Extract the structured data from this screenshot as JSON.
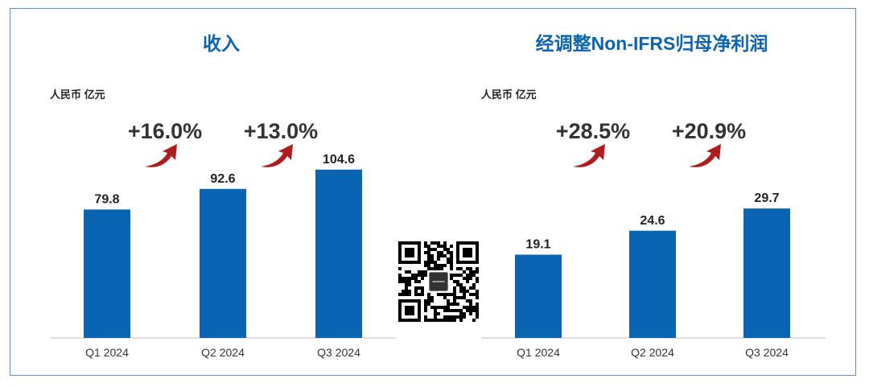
{
  "charts": [
    {
      "title": "收入",
      "unit": "人民币 亿元",
      "chart_data": {
        "type": "bar",
        "title": "收入",
        "ylabel": "人民币 亿元",
        "categories": [
          "Q1 2024",
          "Q2 2024",
          "Q3 2024"
        ],
        "values": [
          79.8,
          92.6,
          104.6
        ],
        "value_labels": [
          "79.8",
          "92.6",
          "104.6"
        ],
        "growth_labels": [
          "+16.0%",
          "+13.0%"
        ],
        "ylim": [
          0,
          130
        ],
        "bar_color": "#0a64b4"
      }
    },
    {
      "title": "经调整Non-IFRS归母净利润",
      "unit": "人民币 亿元",
      "chart_data": {
        "type": "bar",
        "title": "经调整Non-IFRS归母净利润",
        "ylabel": "人民币 亿元",
        "categories": [
          "Q1 2024",
          "Q2 2024",
          "Q3 2024"
        ],
        "values": [
          19.1,
          24.6,
          29.7
        ],
        "value_labels": [
          "19.1",
          "24.6",
          "29.7"
        ],
        "growth_labels": [
          "+28.5%",
          "+20.9%"
        ],
        "ylim": [
          0,
          48
        ],
        "bar_color": "#0a64b4"
      }
    }
  ],
  "colors": {
    "title": "#0a64b4",
    "bar": "#0a64b4",
    "arrow": "#b01c1c",
    "frame": "#5a8fd0",
    "axis": "#bfbfbf"
  },
  "qr": {
    "icon": "qr-code-icon"
  }
}
